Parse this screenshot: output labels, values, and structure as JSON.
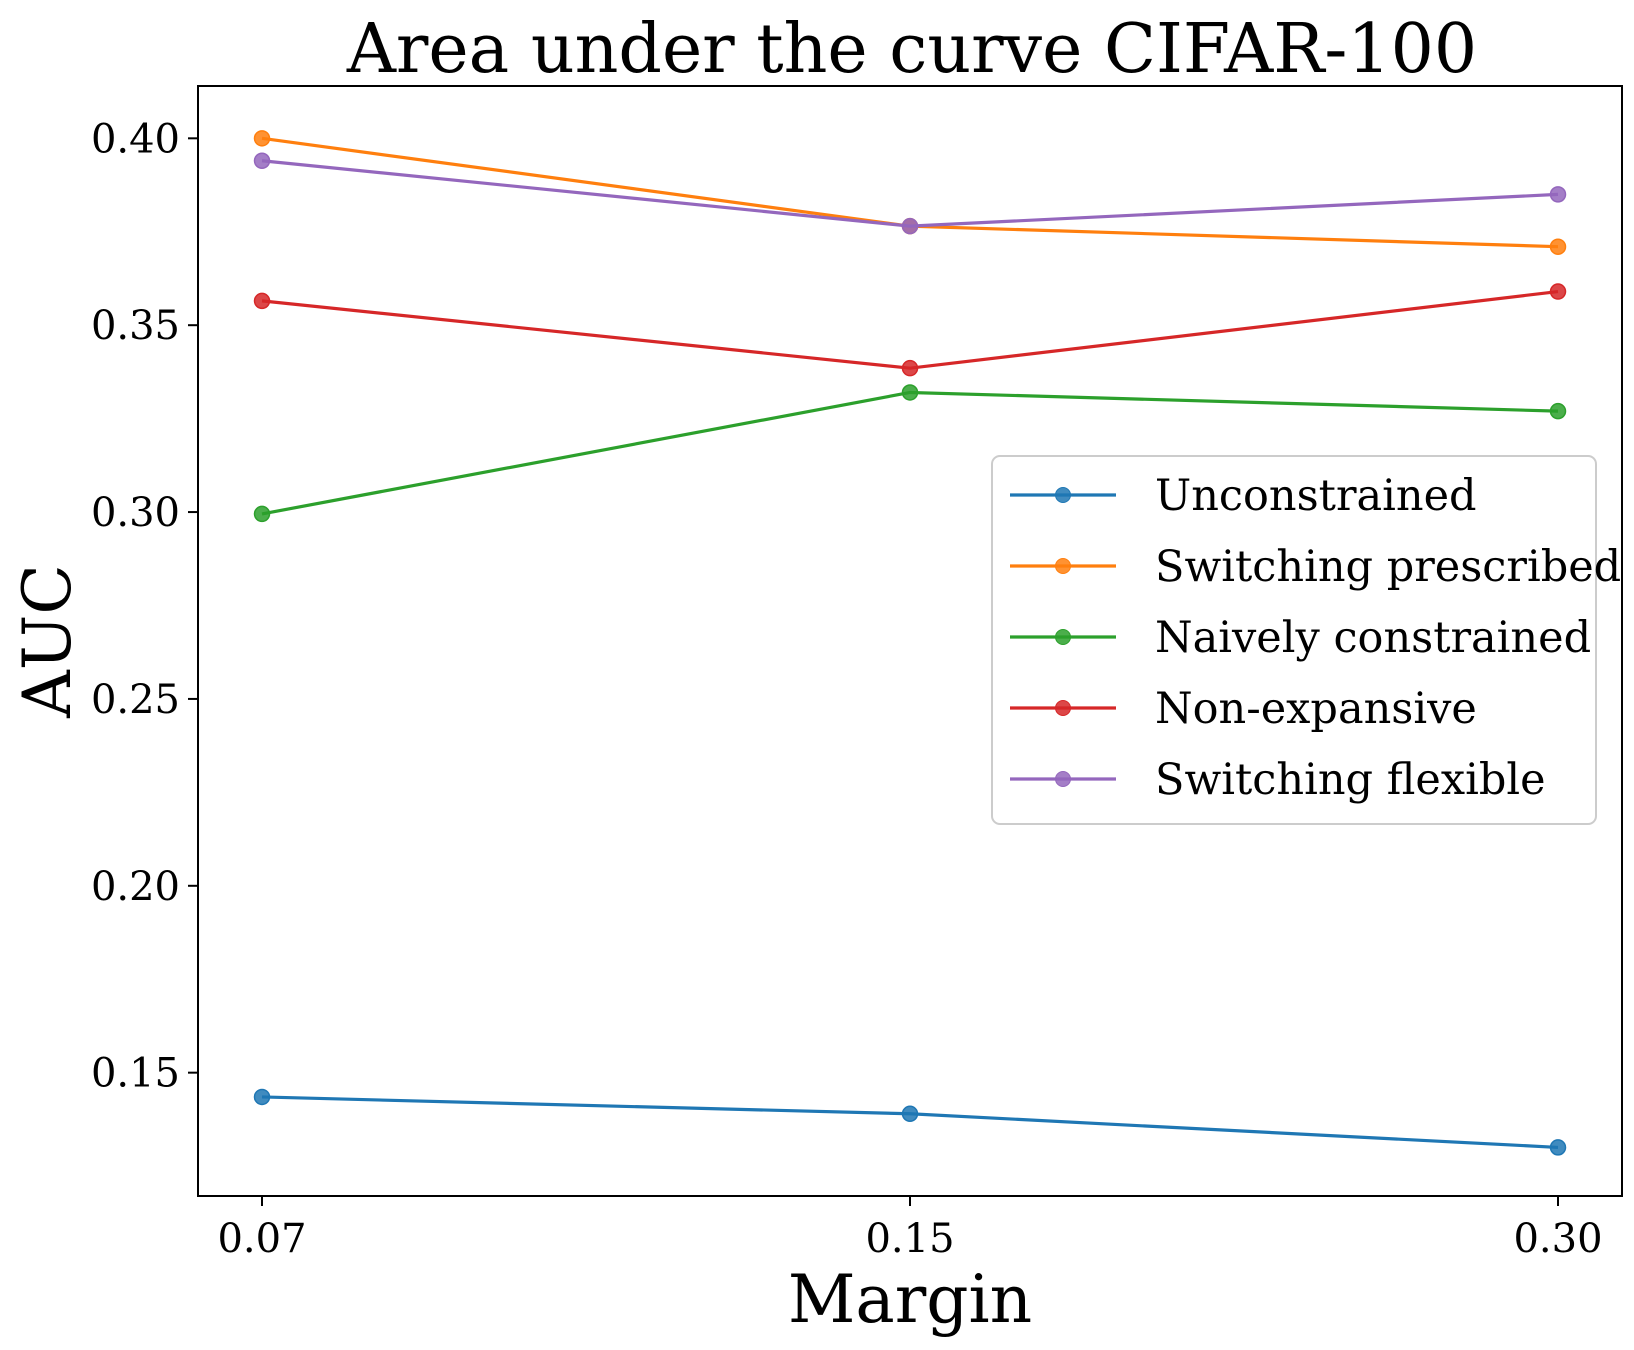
{
  "chart_data": {
    "type": "line",
    "title": "Area under the curve CIFAR-100",
    "xlabel": "Margin",
    "ylabel": "AUC",
    "categories": [
      "0.07",
      "0.15",
      "0.30"
    ],
    "ylim": [
      0.117,
      0.414
    ],
    "yticks": [
      0.15,
      0.2,
      0.25,
      0.3,
      0.35,
      0.4
    ],
    "ytick_labels": [
      "0.15",
      "0.20",
      "0.25",
      "0.30",
      "0.35",
      "0.40"
    ],
    "grid": false,
    "legend_position": "center-right",
    "series": [
      {
        "name": "Unconstrained",
        "color": "#1f77b4",
        "values": [
          0.1435,
          0.139,
          0.13
        ]
      },
      {
        "name": "Switching prescribed",
        "color": "#ff7f0e",
        "values": [
          0.4,
          0.3765,
          0.371
        ]
      },
      {
        "name": "Naively constrained",
        "color": "#2ca02c",
        "values": [
          0.2995,
          0.332,
          0.327
        ]
      },
      {
        "name": "Non-expansive",
        "color": "#d62728",
        "values": [
          0.3565,
          0.3385,
          0.359
        ]
      },
      {
        "name": "Switching flexible",
        "color": "#9467bd",
        "values": [
          0.394,
          0.3765,
          0.385
        ]
      }
    ]
  }
}
